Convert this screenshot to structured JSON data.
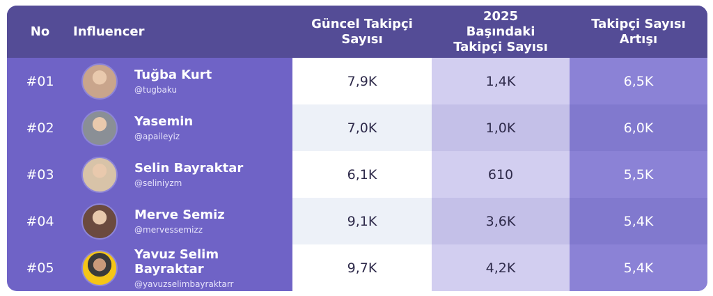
{
  "table": {
    "columns": [
      "No",
      "Influencer",
      "Güncel Takipçi Sayısı",
      "2025 Başındaki Takipçi Sayısı",
      "Takipçi Sayısı Artışı"
    ],
    "rows": [
      {
        "no": "#01",
        "name": "Tuğba Kurt",
        "handle": "@tugbaku",
        "current": "7,9K",
        "start": "1,4K",
        "increase": "6,5K"
      },
      {
        "no": "#02",
        "name": "Yasemin",
        "handle": "@apaileyiz",
        "current": "7,0K",
        "start": "1,0K",
        "increase": "6,0K"
      },
      {
        "no": "#03",
        "name": "Selin Bayraktar",
        "handle": "@seliniyzm",
        "current": "6,1K",
        "start": "610",
        "increase": "5,5K"
      },
      {
        "no": "#04",
        "name": "Merve Semiz",
        "handle": "@mervessemizz",
        "current": "9,1K",
        "start": "3,6K",
        "increase": "5,4K"
      },
      {
        "no": "#05",
        "name": "Yavuz Selim Bayraktar",
        "handle": "@yavuzselimbayraktarr",
        "current": "9,7K",
        "start": "4,2K",
        "increase": "5,4K"
      }
    ]
  }
}
